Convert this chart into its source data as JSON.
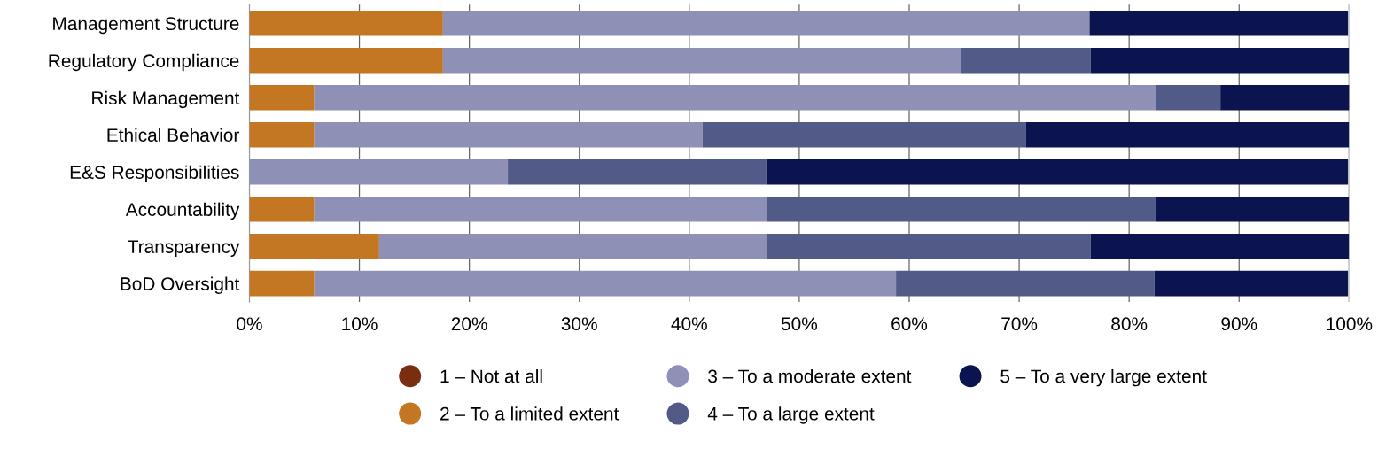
{
  "chart_data": {
    "type": "bar",
    "orientation": "horizontal",
    "stacked": true,
    "categories": [
      "Management Structure",
      "Regulatory Compliance",
      "Risk Management",
      "Ethical Behavior",
      "E&S Responsibilities",
      "Accountability",
      "Transparency",
      "BoD Oversight"
    ],
    "series": [
      {
        "name": "1 – Not at all",
        "color": "#7a2e10",
        "values": [
          0,
          0,
          0,
          0,
          0,
          0,
          0,
          0
        ]
      },
      {
        "name": "2 – To a limited extent",
        "color": "#c47722",
        "values": [
          17.6,
          17.6,
          5.9,
          5.9,
          0,
          5.9,
          11.8,
          5.9
        ]
      },
      {
        "name": "3 – To a moderate extent",
        "color": "#8e90b6",
        "values": [
          58.8,
          47.1,
          76.5,
          35.3,
          23.5,
          41.2,
          35.3,
          52.9
        ]
      },
      {
        "name": "4 – To a large extent",
        "color": "#525a88",
        "values": [
          0,
          11.8,
          5.9,
          29.4,
          23.5,
          35.3,
          29.4,
          23.5
        ]
      },
      {
        "name": "5 – To a very large extent",
        "color": "#0c1450",
        "values": [
          23.5,
          23.5,
          11.8,
          29.4,
          52.9,
          17.6,
          23.5,
          17.6
        ]
      }
    ],
    "xlim": [
      0,
      100
    ],
    "xticks": [
      {
        "value": 0,
        "label": "0%"
      },
      {
        "value": 10,
        "label": "10%"
      },
      {
        "value": 20,
        "label": "20%"
      },
      {
        "value": 30,
        "label": "30%"
      },
      {
        "value": 40,
        "label": "40%"
      },
      {
        "value": 50,
        "label": "50%"
      },
      {
        "value": 60,
        "label": "60%"
      },
      {
        "value": 70,
        "label": "70%"
      },
      {
        "value": 80,
        "label": "80%"
      },
      {
        "value": 90,
        "label": "90%"
      },
      {
        "value": 100,
        "label": "100%"
      }
    ],
    "grid": "x",
    "legend": "bottom",
    "marker": "circle"
  }
}
